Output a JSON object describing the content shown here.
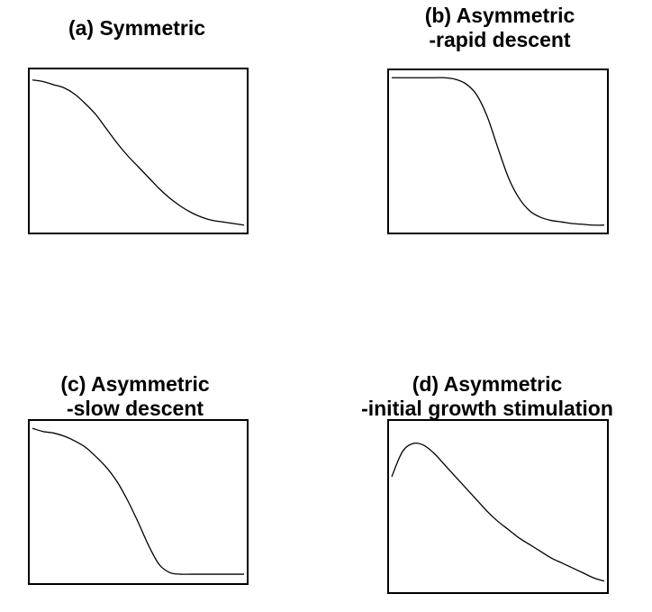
{
  "chart_data": [
    {
      "type": "line",
      "title_lines": [
        "(a) Symmetric"
      ],
      "xlabel": "",
      "ylabel": "",
      "x": [
        0,
        0.05,
        0.1,
        0.15,
        0.2,
        0.25,
        0.3,
        0.35,
        0.4,
        0.45,
        0.5,
        0.55,
        0.6,
        0.65,
        0.7,
        0.75,
        0.8,
        0.85,
        0.9,
        0.95,
        1.0
      ],
      "series": [
        {
          "values": [
            0.95,
            0.94,
            0.92,
            0.9,
            0.86,
            0.8,
            0.73,
            0.64,
            0.55,
            0.47,
            0.4,
            0.33,
            0.26,
            0.2,
            0.15,
            0.11,
            0.08,
            0.06,
            0.05,
            0.04,
            0.03
          ]
        }
      ],
      "xlim": [
        0,
        1
      ],
      "ylim": [
        0,
        1
      ],
      "grid": false,
      "line_color": "#000000"
    },
    {
      "type": "line",
      "title_lines": [
        "(b) Asymmetric",
        "-rapid descent"
      ],
      "xlabel": "",
      "ylabel": "",
      "x": [
        0,
        0.05,
        0.1,
        0.15,
        0.2,
        0.25,
        0.3,
        0.35,
        0.4,
        0.45,
        0.5,
        0.55,
        0.6,
        0.65,
        0.7,
        0.75,
        0.8,
        0.85,
        0.9,
        0.95,
        1.0
      ],
      "series": [
        {
          "values": [
            0.97,
            0.97,
            0.97,
            0.97,
            0.97,
            0.97,
            0.96,
            0.93,
            0.86,
            0.72,
            0.52,
            0.33,
            0.2,
            0.12,
            0.08,
            0.06,
            0.05,
            0.04,
            0.035,
            0.03,
            0.03
          ]
        }
      ],
      "xlim": [
        0,
        1
      ],
      "ylim": [
        0,
        1
      ],
      "grid": false,
      "line_color": "#000000"
    },
    {
      "type": "line",
      "title_lines": [
        "(c) Asymmetric",
        "-slow descent"
      ],
      "xlabel": "",
      "ylabel": "",
      "x": [
        0,
        0.05,
        0.1,
        0.15,
        0.2,
        0.25,
        0.3,
        0.35,
        0.4,
        0.45,
        0.5,
        0.55,
        0.6,
        0.65,
        0.7,
        0.75,
        0.8,
        0.85,
        0.9,
        0.95,
        1.0
      ],
      "series": [
        {
          "values": [
            0.97,
            0.95,
            0.94,
            0.92,
            0.89,
            0.85,
            0.79,
            0.72,
            0.63,
            0.51,
            0.37,
            0.22,
            0.1,
            0.05,
            0.04,
            0.04,
            0.04,
            0.04,
            0.04,
            0.04,
            0.04
          ]
        }
      ],
      "xlim": [
        0,
        1
      ],
      "ylim": [
        0,
        1
      ],
      "grid": false,
      "line_color": "#000000"
    },
    {
      "type": "line",
      "title_lines": [
        "(d) Asymmetric",
        "-initial growth stimulation"
      ],
      "xlabel": "",
      "ylabel": "",
      "x": [
        0,
        0.05,
        0.1,
        0.15,
        0.2,
        0.25,
        0.3,
        0.35,
        0.4,
        0.45,
        0.5,
        0.55,
        0.6,
        0.65,
        0.7,
        0.75,
        0.8,
        0.85,
        0.9,
        0.95,
        1.0
      ],
      "series": [
        {
          "values": [
            0.68,
            0.83,
            0.88,
            0.87,
            0.82,
            0.75,
            0.68,
            0.61,
            0.54,
            0.47,
            0.41,
            0.36,
            0.31,
            0.27,
            0.23,
            0.19,
            0.16,
            0.13,
            0.1,
            0.07,
            0.05
          ]
        }
      ],
      "xlim": [
        0,
        1
      ],
      "ylim": [
        0,
        1
      ],
      "grid": false,
      "line_color": "#000000"
    }
  ]
}
